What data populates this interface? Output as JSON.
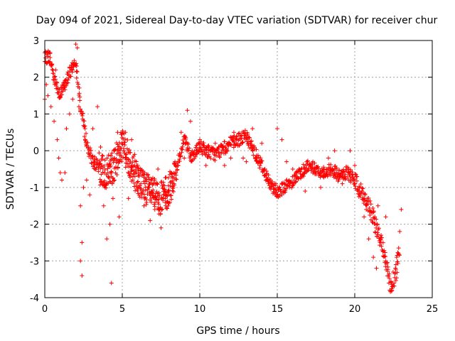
{
  "colors": {
    "series": "#ff0000",
    "grid": "#a0a0a0",
    "frame": "#000000"
  },
  "chart_data": {
    "type": "scatter",
    "title": "Day 094 of 2021, Sidereal Day-to-day VTEC variation (SDTVAR) for receiver chur",
    "xlabel": "GPS time / hours",
    "ylabel": "SDTVAR / TECUs",
    "xlim": [
      0,
      25
    ],
    "ylim": [
      -4,
      3
    ],
    "xticks": [
      0,
      5,
      10,
      15,
      20,
      25
    ],
    "yticks": [
      -4,
      -3,
      -2,
      -1,
      0,
      1,
      2,
      3
    ],
    "grid": true,
    "marker": "+",
    "series": [
      {
        "name": "SDTVAR",
        "trend_x": [
          0,
          0.3,
          0.6,
          1.0,
          1.5,
          2.0,
          2.3,
          2.7,
          3.0,
          3.5,
          4.0,
          4.5,
          5.0,
          5.5,
          6.0,
          6.5,
          7.0,
          7.5,
          8.0,
          8.5,
          9.0,
          9.5,
          10.0,
          11.0,
          12.0,
          12.5,
          13.0,
          13.5,
          14.0,
          14.5,
          15.0,
          15.5,
          16.0,
          16.5,
          17.0,
          17.5,
          18.0,
          18.5,
          19.0,
          19.5,
          20.0,
          20.5,
          21.0,
          21.5,
          22.0,
          22.3,
          22.6,
          22.9
        ],
        "trend_y": [
          2.5,
          2.6,
          2.0,
          1.5,
          2.0,
          2.5,
          1.2,
          0.2,
          -0.2,
          -0.5,
          -0.6,
          -0.4,
          0.2,
          -0.3,
          -0.8,
          -1.0,
          -1.2,
          -1.3,
          -1.1,
          -0.5,
          0.3,
          -0.2,
          0.1,
          -0.1,
          0.2,
          0.3,
          0.4,
          0.0,
          -0.4,
          -0.9,
          -1.1,
          -1.0,
          -0.8,
          -0.6,
          -0.4,
          -0.5,
          -0.6,
          -0.5,
          -0.7,
          -0.6,
          -0.8,
          -1.2,
          -1.6,
          -2.2,
          -3.0,
          -3.7,
          -3.4,
          -2.7
        ],
        "extra_points": [
          [
            0.1,
            1.8
          ],
          [
            0.2,
            1.5
          ],
          [
            0.4,
            1.2
          ],
          [
            0.6,
            0.8
          ],
          [
            0.8,
            0.3
          ],
          [
            0.9,
            -0.2
          ],
          [
            1.0,
            -0.6
          ],
          [
            1.1,
            -0.8
          ],
          [
            1.3,
            -0.6
          ],
          [
            1.6,
            1.0
          ],
          [
            1.8,
            1.4
          ],
          [
            2.0,
            2.9
          ],
          [
            2.1,
            2.8
          ],
          [
            2.2,
            1.2
          ],
          [
            2.3,
            -1.5
          ],
          [
            2.4,
            -2.5
          ],
          [
            2.4,
            -3.4
          ],
          [
            2.3,
            -3.0
          ],
          [
            2.5,
            -1.0
          ],
          [
            2.7,
            -0.8
          ],
          [
            2.9,
            -1.2
          ],
          [
            3.1,
            0.6
          ],
          [
            3.4,
            1.2
          ],
          [
            3.8,
            -1.5
          ],
          [
            4.0,
            -2.4
          ],
          [
            4.2,
            -2.0
          ],
          [
            4.3,
            -3.6
          ],
          [
            4.5,
            -0.8
          ],
          [
            4.8,
            -1.8
          ],
          [
            5.2,
            0.5
          ],
          [
            5.6,
            0.3
          ],
          [
            6.0,
            -0.4
          ],
          [
            6.4,
            -1.5
          ],
          [
            6.8,
            -1.9
          ],
          [
            7.1,
            -1.6
          ],
          [
            7.5,
            -2.1
          ],
          [
            7.8,
            -1.5
          ],
          [
            8.4,
            -0.3
          ],
          [
            8.8,
            0.5
          ],
          [
            9.2,
            1.1
          ],
          [
            9.4,
            0.8
          ],
          [
            9.8,
            0.0
          ],
          [
            10.4,
            -0.4
          ],
          [
            11.0,
            0.2
          ],
          [
            11.6,
            -0.4
          ],
          [
            12.2,
            0.5
          ],
          [
            12.8,
            -0.2
          ],
          [
            13.4,
            0.6
          ],
          [
            14.0,
            0.2
          ],
          [
            14.6,
            -1.0
          ],
          [
            14.9,
            -1.2
          ],
          [
            15.0,
            0.6
          ],
          [
            15.3,
            0.3
          ],
          [
            15.6,
            -0.3
          ],
          [
            16.2,
            -0.6
          ],
          [
            16.8,
            -1.1
          ],
          [
            17.3,
            -0.3
          ],
          [
            17.8,
            -1.0
          ],
          [
            18.3,
            -0.2
          ],
          [
            18.7,
            0.0
          ],
          [
            19.2,
            -0.9
          ],
          [
            19.6,
            -0.8
          ],
          [
            20.0,
            -0.4
          ],
          [
            20.3,
            -1.1
          ],
          [
            20.6,
            -1.8
          ],
          [
            20.9,
            -2.4
          ],
          [
            21.2,
            -2.9
          ],
          [
            21.4,
            -3.2
          ],
          [
            21.7,
            -2.3
          ],
          [
            22.0,
            -1.8
          ],
          [
            22.2,
            -3.6
          ],
          [
            22.4,
            -3.8
          ],
          [
            22.7,
            -2.9
          ],
          [
            22.9,
            -2.2
          ],
          [
            23.0,
            -1.6
          ],
          [
            21.5,
            -1.5
          ],
          [
            20.8,
            -1.3
          ],
          [
            19.7,
            0.0
          ],
          [
            18.0,
            -0.7
          ],
          [
            16.0,
            -0.5
          ],
          [
            13.0,
            -0.3
          ],
          [
            12.0,
            -0.2
          ],
          [
            10.0,
            0.3
          ],
          [
            9.0,
            -0.2
          ],
          [
            8.2,
            -0.7
          ],
          [
            7.3,
            -0.5
          ],
          [
            6.7,
            -1.0
          ],
          [
            6.2,
            -0.9
          ],
          [
            5.8,
            -0.1
          ],
          [
            5.4,
            -1.3
          ],
          [
            4.7,
            0.5
          ],
          [
            4.4,
            -1.3
          ],
          [
            3.6,
            0.1
          ],
          [
            3.2,
            -0.3
          ],
          [
            2.6,
            0.6
          ],
          [
            1.4,
            0.6
          ],
          [
            1.2,
            1.7
          ],
          [
            0.7,
            2.2
          ],
          [
            0.3,
            2.4
          ],
          [
            0.0,
            1.4
          ]
        ]
      }
    ]
  }
}
